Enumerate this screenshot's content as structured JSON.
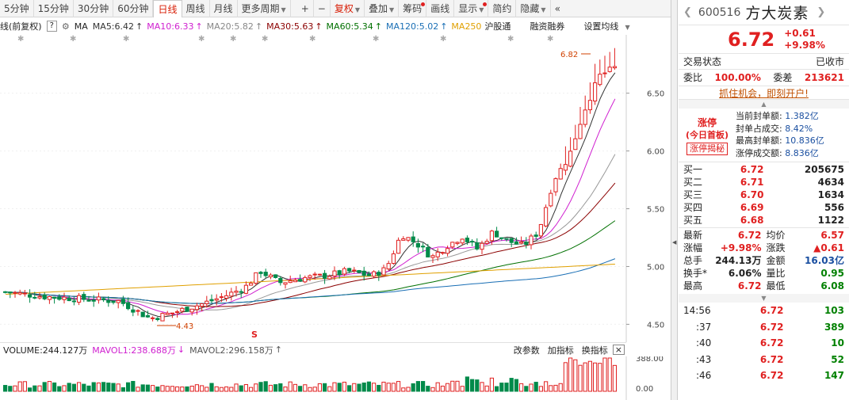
{
  "toolbar": {
    "periods": [
      "5分钟",
      "15分钟",
      "30分钟",
      "60分钟",
      "日线",
      "周线",
      "月线",
      "更多周期"
    ],
    "active_period": "日线",
    "zoom_in": "+",
    "zoom_out": "−",
    "tools": [
      "复权",
      "叠加",
      "筹码",
      "画线",
      "显示",
      "简约",
      "隐藏"
    ],
    "collapse_icon": "«"
  },
  "indicator_bar": {
    "prefix": "线(前复权)",
    "help": "?",
    "ma_label": "MA",
    "items": [
      {
        "label": "MA5:6.42",
        "color": "#333333",
        "arrow": "↑"
      },
      {
        "label": "MA10:6.33",
        "color": "#d020d0",
        "arrow": "↑"
      },
      {
        "label": "MA20:5.82",
        "color": "#888888",
        "arrow": "↑"
      },
      {
        "label": "MA30:5.63",
        "color": "#8b0000",
        "arrow": "↑"
      },
      {
        "label": "MA60:5.34",
        "color": "#007000",
        "arrow": "↑"
      },
      {
        "label": "MA120:5.02",
        "color": "#1a6fb5",
        "arrow": "↑"
      },
      {
        "label": "MA250",
        "color": "#e0a000",
        "arrow": ""
      }
    ],
    "extras": [
      "沪股通",
      "融资融券",
      "设置均线"
    ]
  },
  "chart": {
    "price_labels": [
      "6.50",
      "6.00",
      "5.50",
      "5.00",
      "4.50"
    ],
    "high_mark": "6.82",
    "low_mark": "4.43",
    "special_mark": "S"
  },
  "volume_bar": {
    "volume": "VOLUME:244.127万",
    "mavol1": "MAVOL1:238.688万",
    "mavol2": "MAVOL2:296.158万",
    "actions": [
      "改参数",
      "加指标",
      "换指标"
    ],
    "close": "×",
    "axis_labels": [
      "388.00",
      "0.00"
    ]
  },
  "panel": {
    "code": "600516",
    "name": "方大炭素",
    "price": "6.72",
    "change": "+0.61",
    "change_pct": "+9.98%",
    "status_label": "交易状态",
    "status_value": "已收市",
    "weibi_label": "委比",
    "weibi_value": "100.00%",
    "weicha_label": "委差",
    "weicha_value": "213621",
    "banner": "抓住机会，即刻开户!",
    "limit": {
      "title": "涨停",
      "sub": "(今日首板)",
      "button": "涨停揭秘",
      "lines": [
        {
          "label": "当前封单额:",
          "value": "1.382亿"
        },
        {
          "label": "封单占成交:",
          "value": "8.42%"
        },
        {
          "label": "最高封单额:",
          "value": "10.836亿"
        },
        {
          "label": "涨停成交额:",
          "value": "8.836亿"
        }
      ]
    },
    "book": [
      {
        "label": "买一",
        "price": "6.72",
        "vol": "205675"
      },
      {
        "label": "买二",
        "price": "6.71",
        "vol": "4634"
      },
      {
        "label": "买三",
        "price": "6.70",
        "vol": "1634"
      },
      {
        "label": "买四",
        "price": "6.69",
        "vol": "556"
      },
      {
        "label": "买五",
        "price": "6.68",
        "vol": "1122"
      }
    ],
    "quote": [
      [
        {
          "label": "最新",
          "value": "6.72",
          "cls": "red"
        },
        {
          "label": "均价",
          "value": "6.57",
          "cls": "red"
        }
      ],
      [
        {
          "label": "涨幅",
          "value": "+9.98%",
          "cls": "red"
        },
        {
          "label": "涨跌",
          "value": "▲0.61",
          "cls": "red"
        }
      ],
      [
        {
          "label": "总手",
          "value": "244.13万",
          "cls": ""
        },
        {
          "label": "金额",
          "value": "16.03亿",
          "cls": "blue"
        }
      ],
      [
        {
          "label": "换手*",
          "value": "6.06%",
          "cls": ""
        },
        {
          "label": "量比",
          "value": "0.95",
          "cls": "green"
        }
      ],
      [
        {
          "label": "最高",
          "value": "6.72",
          "cls": "red"
        },
        {
          "label": "最低",
          "value": "6.08",
          "cls": "green"
        }
      ]
    ],
    "ticks": [
      {
        "time": "14:56",
        "price": "6.72",
        "vol": "103"
      },
      {
        "time": ":37",
        "price": "6.72",
        "vol": "389"
      },
      {
        "time": ":40",
        "price": "6.72",
        "vol": "10"
      },
      {
        "time": ":43",
        "price": "6.72",
        "vol": "52"
      },
      {
        "time": ":46",
        "price": "6.72",
        "vol": "147"
      }
    ]
  }
}
